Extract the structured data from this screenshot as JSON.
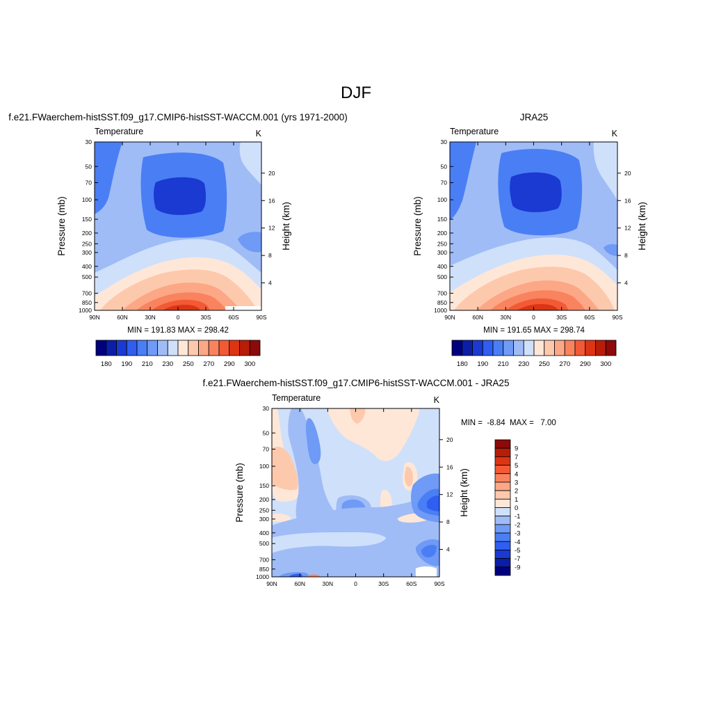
{
  "page": {
    "title": "DJF"
  },
  "panels": [
    {
      "id": "model",
      "heading": "f.e21.FWaerchem-histSST.f09_g17.CMIP6-histSST-WACCM.001 (yrs 1971-2000)",
      "variable": "Temperature",
      "units": "K",
      "stats": "MIN = 191.83  MAX = 298.42"
    },
    {
      "id": "obs",
      "heading": "JRA25",
      "variable": "Temperature",
      "units": "K",
      "stats": "MIN = 191.65  MAX = 298.74"
    },
    {
      "id": "diff",
      "heading": "f.e21.FWaerchem-histSST.f09_g17.CMIP6-histSST-WACCM.001 - JRA25",
      "variable": "Temperature",
      "units": "K",
      "stats": "MIN =  -8.84  MAX =   7.00"
    }
  ],
  "colors": {
    "temperature_scale": [
      "#00007f",
      "#0a1ea8",
      "#1a3ad2",
      "#2f5ef0",
      "#4a7ef4",
      "#6f9af5",
      "#9fbcf6",
      "#cfe0fb",
      "#ffe7d8",
      "#fdc9ad",
      "#fca785",
      "#f9835e",
      "#f25a36",
      "#dd3514",
      "#b81d08",
      "#8c0a0a"
    ],
    "difference_scale": [
      "#00007f",
      "#0a1ea8",
      "#1a3ad2",
      "#2f5ef0",
      "#4a7ef4",
      "#6f9af5",
      "#9fbcf6",
      "#cfe0fb",
      "#ffe7d8",
      "#fdc9ad",
      "#fca785",
      "#f9835e",
      "#f25a36",
      "#dd3514",
      "#b81d08",
      "#8c0a0a"
    ]
  },
  "chart_data": [
    {
      "type": "heatmap",
      "title": "f.e21.FWaerchem-histSST.f09_g17.CMIP6-histSST-WACCM.001 (yrs 1971-2000)",
      "subtitle_left": "Temperature",
      "subtitle_right": "K",
      "xlabel": "",
      "ylabel": "Pressure (mb)",
      "ylabel_right": "Height (km)",
      "x_ticks": [
        "90N",
        "60N",
        "30N",
        "0",
        "30S",
        "60S",
        "90S"
      ],
      "y_ticks": [
        30,
        50,
        70,
        100,
        150,
        200,
        250,
        300,
        400,
        500,
        700,
        850,
        1000
      ],
      "y_ticks_right": [
        4,
        8,
        12,
        16,
        20
      ],
      "y_scale": "log",
      "ylim": [
        1000,
        30
      ],
      "colorbar_labels": [
        "180",
        "190",
        "210",
        "230",
        "250",
        "270",
        "290",
        "300"
      ],
      "stats": {
        "min": 191.83,
        "max": 298.42
      }
    },
    {
      "type": "heatmap",
      "title": "JRA25",
      "subtitle_left": "Temperature",
      "subtitle_right": "K",
      "xlabel": "",
      "ylabel": "Pressure (mb)",
      "ylabel_right": "Height (km)",
      "x_ticks": [
        "90N",
        "60N",
        "30N",
        "0",
        "30S",
        "60S",
        "90S"
      ],
      "y_ticks": [
        30,
        50,
        70,
        100,
        150,
        200,
        250,
        300,
        400,
        500,
        700,
        850,
        1000
      ],
      "y_ticks_right": [
        4,
        8,
        12,
        16,
        20
      ],
      "y_scale": "log",
      "ylim": [
        1000,
        30
      ],
      "colorbar_labels": [
        "180",
        "190",
        "210",
        "230",
        "250",
        "270",
        "290",
        "300"
      ],
      "stats": {
        "min": 191.65,
        "max": 298.74
      }
    },
    {
      "type": "heatmap",
      "title": "f.e21.FWaerchem-histSST.f09_g17.CMIP6-histSST-WACCM.001 - JRA25",
      "subtitle_left": "Temperature",
      "subtitle_right": "K",
      "xlabel": "",
      "ylabel": "Pressure (mb)",
      "ylabel_right": "Height (km)",
      "x_ticks": [
        "90N",
        "60N",
        "30N",
        "0",
        "30S",
        "60S",
        "90S"
      ],
      "y_ticks": [
        30,
        50,
        70,
        100,
        150,
        200,
        250,
        300,
        400,
        500,
        700,
        850,
        1000
      ],
      "y_ticks_right": [
        4,
        8,
        12,
        16,
        20
      ],
      "y_scale": "log",
      "ylim": [
        1000,
        30
      ],
      "colorbar_labels": [
        "9",
        "7",
        "5",
        "4",
        "3",
        "2",
        "1",
        "0",
        "-1",
        "-2",
        "-3",
        "-4",
        "-5",
        "-7",
        "-9"
      ],
      "stats": {
        "min": -8.84,
        "max": 7.0
      }
    }
  ]
}
